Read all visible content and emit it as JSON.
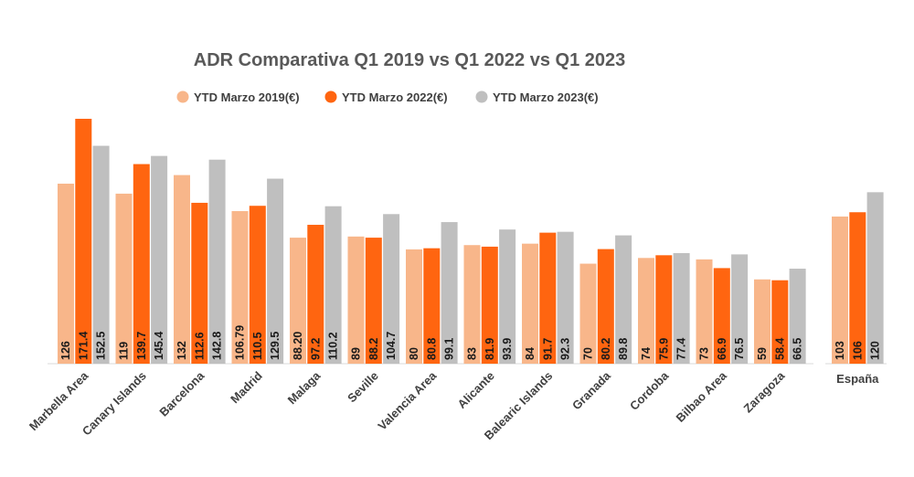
{
  "chart_data": [
    {
      "type": "bar",
      "title": "ADR Comparativa Q1 2019 vs Q1 2022 vs Q1 2023",
      "xlabel": "",
      "ylabel": "",
      "ylim": [
        0,
        171.4
      ],
      "grid": false,
      "legend": "top",
      "categories": [
        "Marbella Area",
        "Canary Islands",
        "Barcelona",
        "Madrid",
        "Malaga",
        "Seville",
        "Valencia Area",
        "Alicante",
        "Balearic Islands",
        "Granada",
        "Cordoba",
        "Bilbao Area",
        "Zaragoza"
      ],
      "series": [
        {
          "name": "YTD Marzo 2019(€)",
          "color": "#F8B68A",
          "values": [
            126,
            119,
            132,
            106.79,
            88.2,
            89,
            80,
            83,
            84,
            70,
            74,
            73,
            59
          ],
          "labels": [
            "126",
            "119",
            "132",
            "106.79",
            "88.20",
            "89",
            "80",
            "83",
            "84",
            "70",
            "74",
            "73",
            "59"
          ]
        },
        {
          "name": "YTD Marzo 2022(€)",
          "color": "#FF6510",
          "values": [
            171.4,
            139.7,
            112.6,
            110.5,
            97.2,
            88.2,
            80.8,
            81.9,
            91.7,
            80.2,
            75.9,
            66.9,
            58.4
          ],
          "labels": [
            "171.4",
            "139.7",
            "112.6",
            "110.5",
            "97.2",
            "88.2",
            "80.8",
            "81.9",
            "91.7",
            "80.2",
            "75.9",
            "66.9",
            "58.4"
          ]
        },
        {
          "name": "YTD Marzo 2023(€)",
          "color": "#BFBFBF",
          "values": [
            152.5,
            145.4,
            142.8,
            129.5,
            110.2,
            104.7,
            99.1,
            93.9,
            92.3,
            89.8,
            77.4,
            76.5,
            66.5
          ],
          "labels": [
            "152.5",
            "145.4",
            "142.8",
            "129.5",
            "110.2",
            "104.7",
            "99.1",
            "93.9",
            "92.3",
            "89.8",
            "77.4",
            "76.5",
            "66.5"
          ]
        }
      ]
    },
    {
      "type": "bar",
      "title": "",
      "ylim": [
        0,
        171.4
      ],
      "categories": [
        "España"
      ],
      "series": [
        {
          "name": "YTD Marzo 2019(€)",
          "color": "#F8B68A",
          "values": [
            103
          ],
          "labels": [
            "103"
          ]
        },
        {
          "name": "YTD Marzo 2022(€)",
          "color": "#FF6510",
          "values": [
            106
          ],
          "labels": [
            "106"
          ]
        },
        {
          "name": "YTD Marzo 2023(€)",
          "color": "#BFBFBF",
          "values": [
            120
          ],
          "labels": [
            "120"
          ]
        }
      ]
    }
  ]
}
